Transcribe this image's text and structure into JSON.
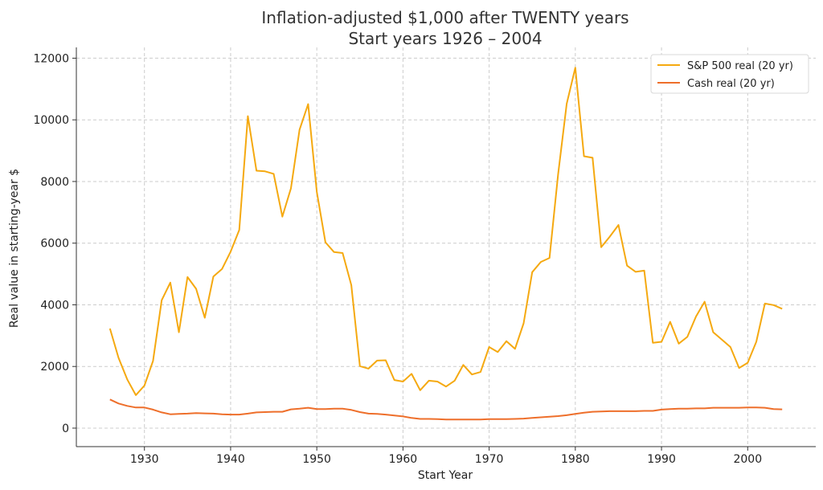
{
  "chart_data": {
    "type": "line",
    "title": "Inflation-adjusted $1,000 after TWENTY years",
    "subtitle": "Start years 1926 – 2004",
    "xlabel": "Start Year",
    "ylabel": "Real value in starting-year $",
    "xlim": [
      1922.1,
      2007.9
    ],
    "ylim": [
      -600,
      12350
    ],
    "xticks": [
      1930,
      1940,
      1950,
      1960,
      1970,
      1980,
      1990,
      2000
    ],
    "yticks": [
      0,
      2000,
      4000,
      6000,
      8000,
      10000,
      12000
    ],
    "grid": true,
    "legend_position": "top-right",
    "x": [
      1926,
      1927,
      1928,
      1929,
      1930,
      1931,
      1932,
      1933,
      1934,
      1935,
      1936,
      1937,
      1938,
      1939,
      1940,
      1941,
      1942,
      1943,
      1944,
      1945,
      1946,
      1947,
      1948,
      1949,
      1950,
      1951,
      1952,
      1953,
      1954,
      1955,
      1956,
      1957,
      1958,
      1959,
      1960,
      1961,
      1962,
      1963,
      1964,
      1965,
      1966,
      1967,
      1968,
      1969,
      1970,
      1971,
      1972,
      1973,
      1974,
      1975,
      1976,
      1977,
      1978,
      1979,
      1980,
      1981,
      1982,
      1983,
      1984,
      1985,
      1986,
      1987,
      1988,
      1989,
      1990,
      1991,
      1992,
      1993,
      1994,
      1995,
      1996,
      1997,
      1998,
      1999,
      2000,
      2001,
      2002,
      2003,
      2004
    ],
    "series": [
      {
        "name": "S&P 500 real (20 yr)",
        "color": "#f5a910",
        "values": [
          3230,
          2280,
          1580,
          1070,
          1380,
          2180,
          4150,
          4720,
          3110,
          4900,
          4520,
          3580,
          4920,
          5160,
          5720,
          6430,
          10120,
          8350,
          8330,
          8250,
          6860,
          7780,
          9680,
          10510,
          7660,
          6030,
          5710,
          5680,
          4640,
          2010,
          1930,
          2190,
          2200,
          1560,
          1510,
          1760,
          1230,
          1540,
          1510,
          1350,
          1540,
          2050,
          1740,
          1820,
          2630,
          2470,
          2820,
          2570,
          3400,
          5060,
          5390,
          5520,
          8230,
          10520,
          11690,
          8820,
          8770,
          5870,
          6210,
          6590,
          5270,
          5070,
          5110,
          2770,
          2800,
          3450,
          2740,
          2960,
          3620,
          4100,
          3110,
          2870,
          2630,
          1950,
          2120,
          2800,
          4040,
          3990,
          3870
        ]
      },
      {
        "name": "Cash real (20 yr)",
        "color": "#ee6f2b",
        "values": [
          930,
          800,
          720,
          670,
          670,
          600,
          510,
          450,
          460,
          470,
          490,
          480,
          470,
          450,
          440,
          440,
          470,
          510,
          520,
          530,
          530,
          610,
          630,
          660,
          620,
          620,
          630,
          630,
          590,
          520,
          470,
          460,
          440,
          410,
          380,
          330,
          300,
          300,
          290,
          280,
          280,
          280,
          280,
          280,
          290,
          290,
          290,
          300,
          310,
          330,
          350,
          370,
          390,
          420,
          460,
          500,
          530,
          540,
          550,
          550,
          550,
          550,
          560,
          560,
          600,
          620,
          630,
          630,
          640,
          640,
          660,
          660,
          660,
          660,
          670,
          670,
          660,
          620,
          610
        ]
      }
    ]
  }
}
